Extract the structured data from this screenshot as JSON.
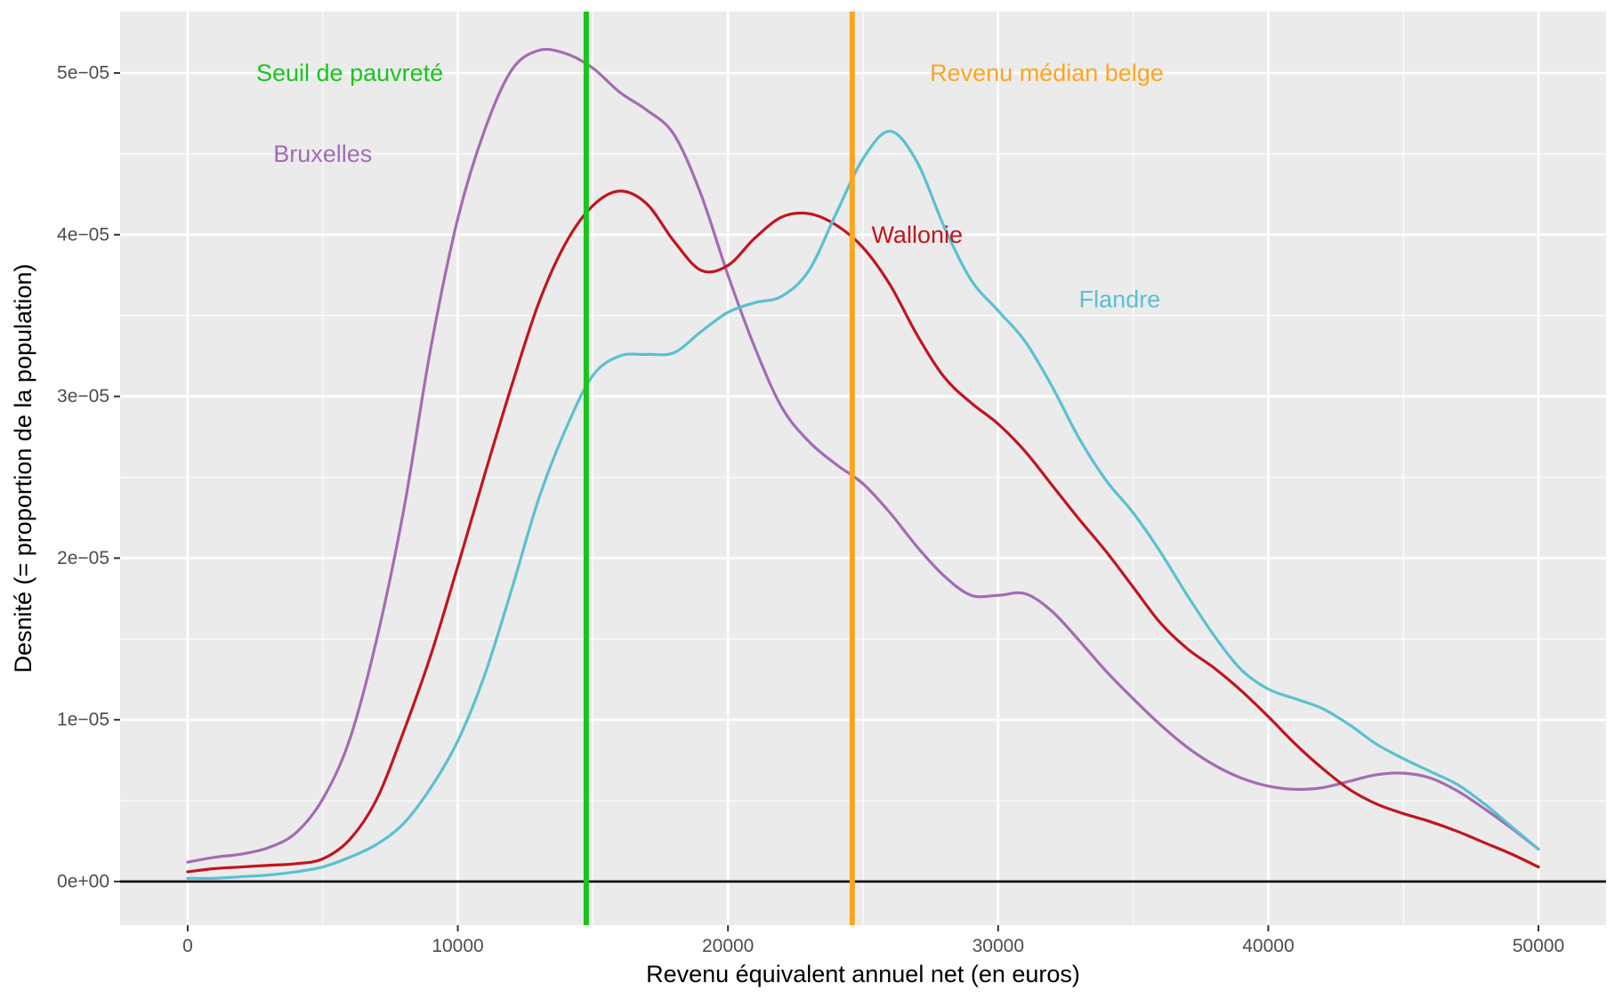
{
  "chart_data": {
    "type": "line",
    "xlabel": "Revenu équivalent annuel net (en euros)",
    "ylabel": "Desnité (= proportion de la population)",
    "xlim": [
      -2500,
      52500
    ],
    "ylim": [
      -2.7e-06,
      5.38e-05
    ],
    "grid": true,
    "x_ticks": [
      0,
      10000,
      20000,
      30000,
      40000,
      50000
    ],
    "x_tick_labels": [
      "0",
      "10000",
      "20000",
      "30000",
      "40000",
      "50000"
    ],
    "y_ticks": [
      0,
      1e-05,
      2e-05,
      3e-05,
      4e-05,
      5e-05
    ],
    "y_tick_labels": [
      "0e+00",
      "1e−05",
      "2e−05",
      "3e−05",
      "4e−05",
      "5e−05"
    ],
    "x": [
      0,
      1000,
      2000,
      3000,
      4000,
      5000,
      6000,
      7000,
      8000,
      9000,
      10000,
      11000,
      12000,
      13000,
      14000,
      15000,
      16000,
      17000,
      18000,
      19000,
      20000,
      21000,
      22000,
      23000,
      24000,
      25000,
      26000,
      27000,
      28000,
      29000,
      30000,
      31000,
      32000,
      33000,
      34000,
      35000,
      36000,
      37000,
      38000,
      39000,
      40000,
      41000,
      42000,
      43000,
      44000,
      45000,
      46000,
      47000,
      48000,
      49000,
      50000
    ],
    "series": [
      {
        "name": "Bruxelles",
        "color": "#a36cb3",
        "values": [
          1.2e-06,
          1.5e-06,
          1.7e-06,
          2.1e-06,
          3e-06,
          5.1e-06,
          8.8e-06,
          1.5e-05,
          2.3e-05,
          3.3e-05,
          4.1e-05,
          4.65e-05,
          5.02e-05,
          5.14e-05,
          5.12e-05,
          5.03e-05,
          4.88e-05,
          4.77e-05,
          4.62e-05,
          4.25e-05,
          3.75e-05,
          3.3e-05,
          2.93e-05,
          2.72e-05,
          2.58e-05,
          2.46e-05,
          2.28e-05,
          2.07e-05,
          1.89e-05,
          1.77e-05,
          1.77e-05,
          1.78e-05,
          1.67e-05,
          1.49e-05,
          1.3e-05,
          1.13e-05,
          9.7e-06,
          8.3e-06,
          7.2e-06,
          6.4e-06,
          5.9e-06,
          5.7e-06,
          5.8e-06,
          6.2e-06,
          6.6e-06,
          6.7e-06,
          6.4e-06,
          5.6e-06,
          4.5e-06,
          3.3e-06,
          2e-06
        ]
      },
      {
        "name": "Wallonie",
        "color": "#c0161e",
        "values": [
          6e-07,
          8e-07,
          9e-07,
          1e-06,
          1.1e-06,
          1.4e-06,
          2.6e-06,
          5.1e-06,
          9.3e-06,
          1.4e-05,
          1.95e-05,
          2.52e-05,
          3.07e-05,
          3.58e-05,
          3.95e-05,
          4.18e-05,
          4.27e-05,
          4.19e-05,
          3.96e-05,
          3.78e-05,
          3.81e-05,
          3.98e-05,
          4.11e-05,
          4.13e-05,
          4.06e-05,
          3.92e-05,
          3.69e-05,
          3.38e-05,
          3.12e-05,
          2.96e-05,
          2.83e-05,
          2.66e-05,
          2.45e-05,
          2.24e-05,
          2.04e-05,
          1.82e-05,
          1.6e-05,
          1.44e-05,
          1.32e-05,
          1.18e-05,
          1.02e-05,
          8.5e-06,
          7e-06,
          5.7e-06,
          4.8e-06,
          4.2e-06,
          3.7e-06,
          3.1e-06,
          2.4e-06,
          1.7e-06,
          9e-07
        ]
      },
      {
        "name": "Flandre",
        "color": "#5bc0d1",
        "values": [
          2e-07,
          2e-07,
          3e-07,
          4e-07,
          6e-07,
          9e-07,
          1.5e-06,
          2.3e-06,
          3.6e-06,
          5.8e-06,
          8.7e-06,
          1.28e-05,
          1.81e-05,
          2.37e-05,
          2.8e-05,
          3.13e-05,
          3.25e-05,
          3.26e-05,
          3.27e-05,
          3.4e-05,
          3.52e-05,
          3.58e-05,
          3.62e-05,
          3.78e-05,
          4.13e-05,
          4.47e-05,
          4.64e-05,
          4.45e-05,
          4.05e-05,
          3.72e-05,
          3.53e-05,
          3.34e-05,
          3.06e-05,
          2.74e-05,
          2.48e-05,
          2.28e-05,
          2.04e-05,
          1.77e-05,
          1.52e-05,
          1.31e-05,
          1.19e-05,
          1.13e-05,
          1.07e-05,
          9.7e-06,
          8.5e-06,
          7.6e-06,
          6.8e-06,
          6e-06,
          4.8e-06,
          3.4e-06,
          2e-06
        ]
      }
    ],
    "reference_lines": [
      {
        "label": "Seuil de pauvreté",
        "x": 14754,
        "color": "#19c51b"
      },
      {
        "label": "Revenu médian belge",
        "x": 24600,
        "color": "#fba620"
      }
    ],
    "annotations": [
      {
        "text": "Seuil de pauvreté",
        "x": 6000,
        "y": 5e-05,
        "color": "#19c51b"
      },
      {
        "text": "Revenu médian belge",
        "x": 31800,
        "y": 5e-05,
        "color": "#fba620"
      },
      {
        "text": "Bruxelles",
        "x": 5000,
        "y": 4.5e-05,
        "color": "#a36cb3"
      },
      {
        "text": "Wallonie",
        "x": 27000,
        "y": 4e-05,
        "color": "#c0161e"
      },
      {
        "text": "Flandre",
        "x": 34500,
        "y": 3.6e-05,
        "color": "#5bc0d1"
      }
    ]
  }
}
